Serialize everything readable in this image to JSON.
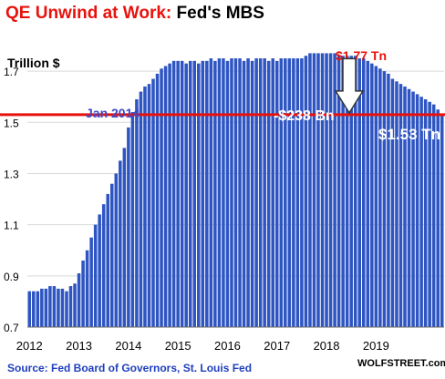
{
  "title": {
    "part1": "QE Unwind at Work:",
    "part2": "Fed's MBS"
  },
  "source": "Source: Fed Board of Governors, St. Louis Fed",
  "brand": "WOLFSTREET.com",
  "colors": {
    "bar": "#2e55c2",
    "title_red": "#e8120c",
    "line_red": "#e8120c",
    "note_blue": "#3b49c9"
  },
  "chart_data": {
    "type": "bar",
    "ylabel": "Trillion $",
    "ylim": [
      0.7,
      1.8
    ],
    "yticks": [
      0.7,
      0.9,
      1.1,
      1.3,
      1.5,
      1.7
    ],
    "ytick_labels": [
      "0.7",
      "0.9",
      "1.1",
      "1.3",
      "1.5",
      "1.7"
    ],
    "xtick_labels": [
      "2012",
      "2013",
      "2014",
      "2015",
      "2016",
      "2017",
      "2018",
      "2019"
    ],
    "x_start": "2012-01",
    "x_end": "2019-07",
    "values": [
      0.84,
      0.84,
      0.84,
      0.85,
      0.85,
      0.86,
      0.86,
      0.85,
      0.85,
      0.84,
      0.86,
      0.87,
      0.91,
      0.96,
      1.0,
      1.05,
      1.1,
      1.14,
      1.18,
      1.22,
      1.26,
      1.3,
      1.35,
      1.4,
      1.48,
      1.54,
      1.59,
      1.62,
      1.64,
      1.65,
      1.67,
      1.69,
      1.71,
      1.72,
      1.73,
      1.74,
      1.74,
      1.74,
      1.73,
      1.74,
      1.74,
      1.73,
      1.74,
      1.74,
      1.75,
      1.74,
      1.75,
      1.75,
      1.74,
      1.75,
      1.75,
      1.75,
      1.74,
      1.75,
      1.74,
      1.75,
      1.75,
      1.75,
      1.74,
      1.75,
      1.74,
      1.75,
      1.75,
      1.75,
      1.75,
      1.75,
      1.75,
      1.76,
      1.77,
      1.77,
      1.77,
      1.77,
      1.77,
      1.77,
      1.77,
      1.76,
      1.76,
      1.76,
      1.76,
      1.76,
      1.75,
      1.75,
      1.74,
      1.73,
      1.72,
      1.71,
      1.7,
      1.69,
      1.67,
      1.66,
      1.65,
      1.64,
      1.63,
      1.62,
      1.61,
      1.6,
      1.59,
      1.58,
      1.57,
      1.55,
      1.53
    ],
    "reference_line": {
      "value": 1.53,
      "label": "Jan 2014"
    },
    "annotations": {
      "peak": "$1.77 Tn",
      "drop": "-$238 Bn",
      "current": "$1.53 Tn"
    }
  }
}
